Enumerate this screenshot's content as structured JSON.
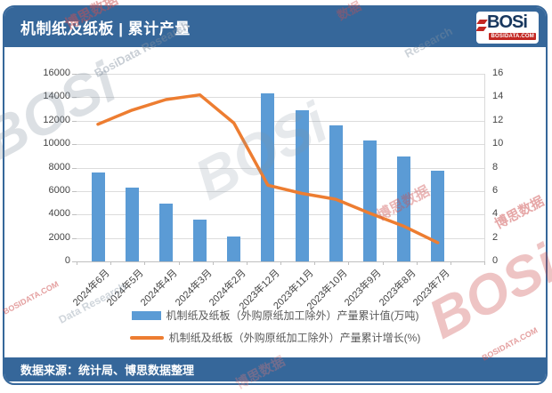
{
  "header": {
    "title": "机制纸及纸板 | 累计产量",
    "logo": {
      "text": "BOSi",
      "domain": "BOSIDATA.COM"
    }
  },
  "footer": {
    "source": "数据来源：统计局、博思数据整理"
  },
  "colors": {
    "band_blue": "#36679A",
    "bar_blue": "#5B9BD5",
    "line_orange": "#ED7D31",
    "logo_navy": "#17375E",
    "logo_red": "#C32823"
  },
  "chart_data": {
    "type": "bar",
    "subtype": "bar+line combo, dual axis",
    "categories": [
      "2024年6月",
      "2024年5月",
      "2024年4月",
      "2024年3月",
      "2024年2月",
      "2023年12月",
      "2023年11月",
      "2023年10月",
      "2023年9月",
      "2023年8月",
      "2023年7月"
    ],
    "series": [
      {
        "name": "机制纸及纸板（外购原纸加工除外）产量累计值(万吨)",
        "type": "bar",
        "axis": "left",
        "color": "#5B9BD5",
        "values": [
          7550,
          6300,
          4900,
          3550,
          2150,
          14300,
          12900,
          11600,
          10300,
          8950,
          7700
        ]
      },
      {
        "name": "机制纸及纸板（外购原纸加工除外）产量累计增长(%)",
        "type": "line",
        "axis": "right",
        "color": "#ED7D31",
        "values": [
          11.7,
          12.9,
          13.8,
          14.2,
          11.8,
          6.5,
          5.8,
          5.3,
          4.1,
          3.0,
          1.6
        ]
      }
    ],
    "left_axis": {
      "min": 0,
      "max": 16000,
      "step": 2000,
      "ticks": [
        0,
        2000,
        4000,
        6000,
        8000,
        10000,
        12000,
        14000,
        16000
      ]
    },
    "right_axis": {
      "min": 0,
      "max": 16,
      "step": 2,
      "ticks": [
        0,
        2,
        4,
        6,
        8,
        10,
        12,
        14,
        16
      ]
    },
    "grid": true,
    "legend_position": "bottom"
  },
  "watermarks": [
    "BOSi",
    "博思数据",
    "数据",
    "BosiData Research",
    "BOSi",
    "Research",
    "博思数据",
    "博思数据",
    "BOSi",
    "BOSIDATA.COM",
    "BOSIDATA.COM",
    "博思数据",
    "Data Research"
  ]
}
